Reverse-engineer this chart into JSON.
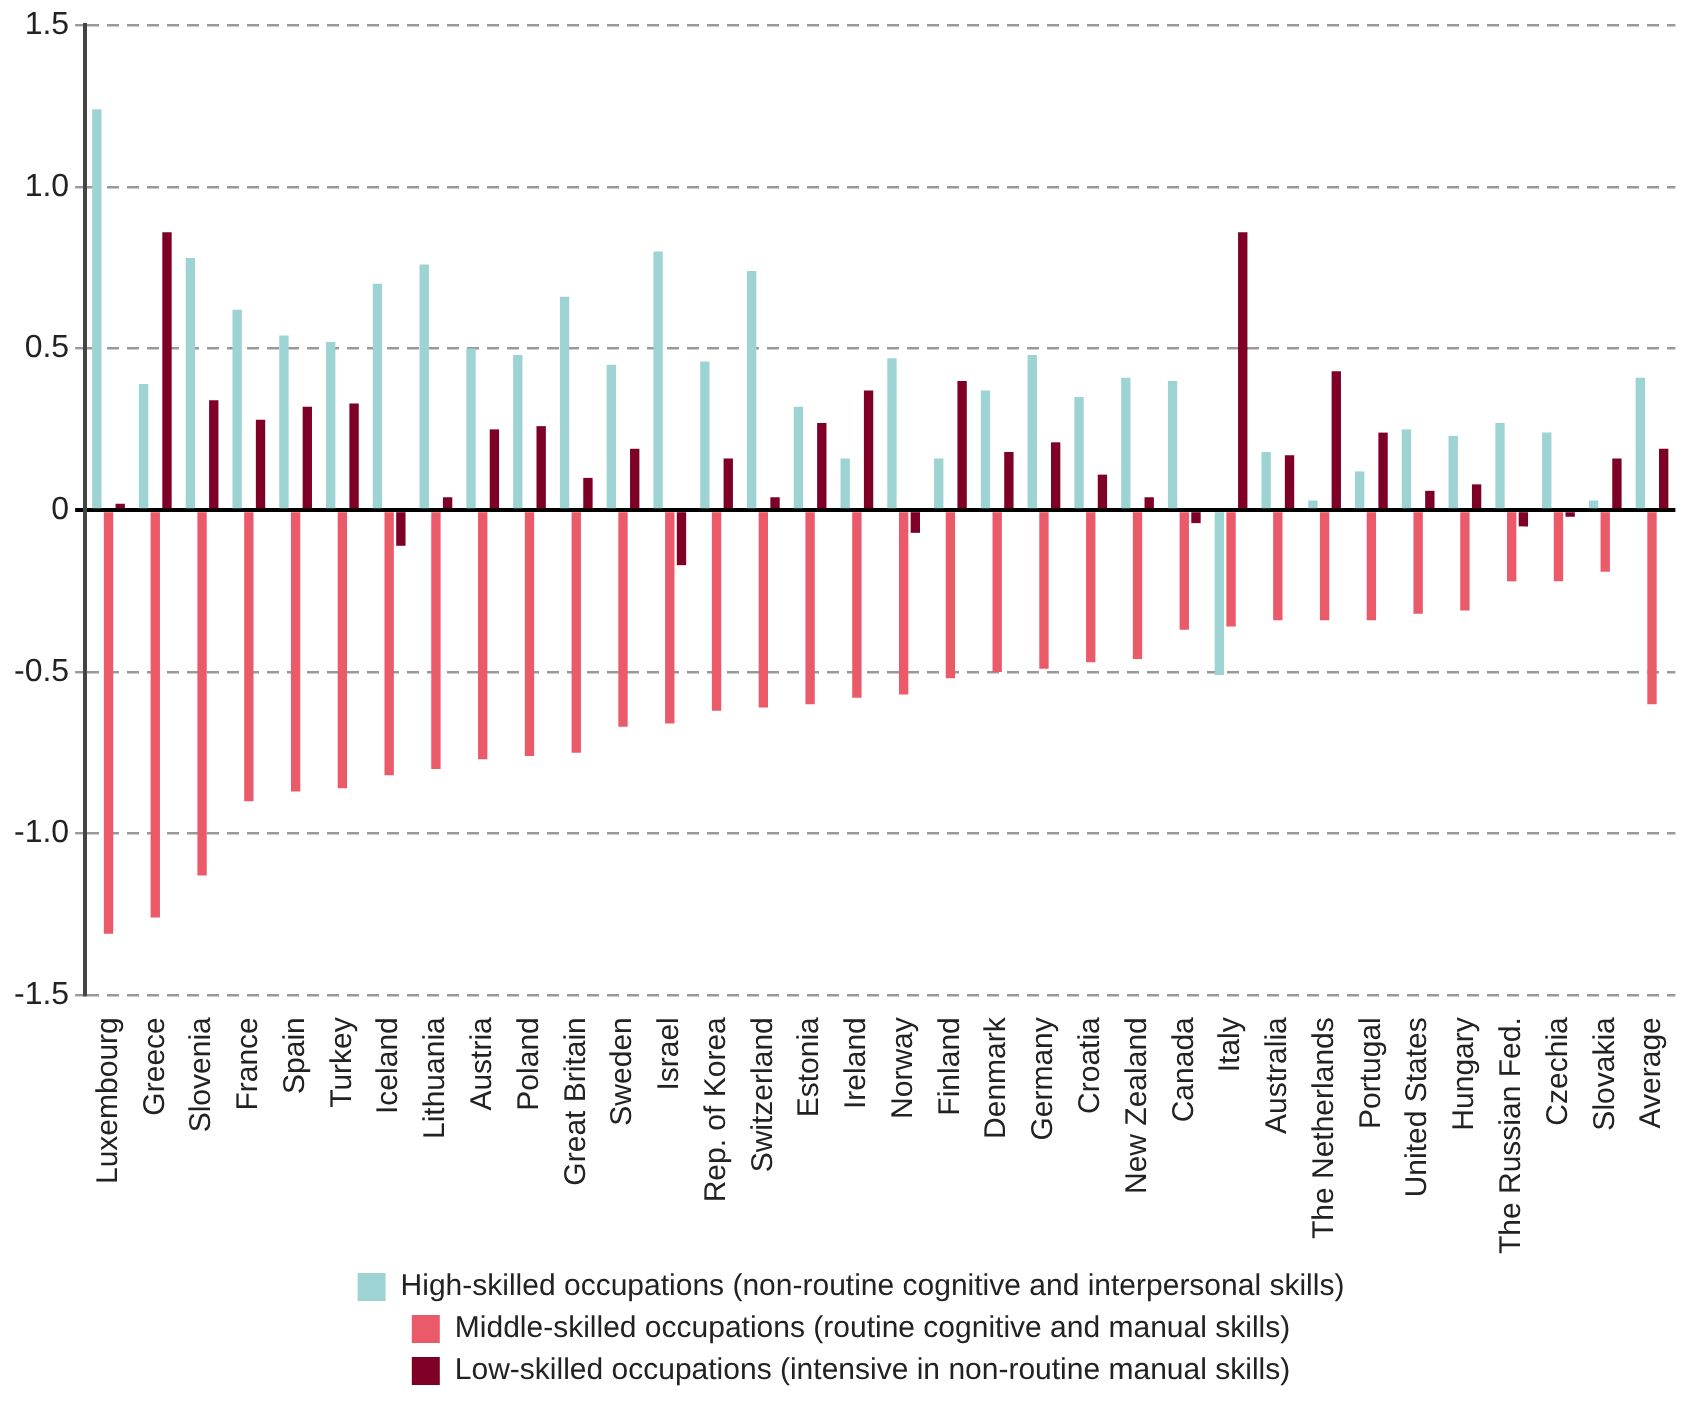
{
  "chart_data": {
    "type": "bar",
    "categories": [
      "Luxembourg",
      "Greece",
      "Slovenia",
      "France",
      "Spain",
      "Turkey",
      "Iceland",
      "Lithuania",
      "Austria",
      "Poland",
      "Great Britain",
      "Sweden",
      "Israel",
      "Rep. of Korea",
      "Switzerland",
      "Estonia",
      "Ireland",
      "Norway",
      "Finland",
      "Denmark",
      "Germany",
      "Croatia",
      "New Zealand",
      "Canada",
      "Italy",
      "Australia",
      "The Netherlands",
      "Portugal",
      "United States",
      "Hungary",
      "The Russian Fed.",
      "Czechia",
      "Slovakia",
      "Average"
    ],
    "series": [
      {
        "name": "High-skilled occupations (non-routine cognitive and interpersonal skills)",
        "color": "#9dd4d3",
        "values": [
          1.24,
          0.39,
          0.78,
          0.62,
          0.54,
          0.52,
          0.7,
          0.76,
          0.5,
          0.48,
          0.66,
          0.45,
          0.8,
          0.46,
          0.74,
          0.32,
          0.16,
          0.47,
          0.16,
          0.37,
          0.48,
          0.35,
          0.41,
          0.4,
          -0.51,
          0.18,
          0.03,
          0.12,
          0.25,
          0.23,
          0.27,
          0.24,
          0.03,
          0.41
        ]
      },
      {
        "name": "Middle-skilled occupations (routine cognitive and manual skills)",
        "color": "#eb5a69",
        "values": [
          -1.31,
          -1.26,
          -1.13,
          -0.9,
          -0.87,
          -0.86,
          -0.82,
          -0.8,
          -0.77,
          -0.76,
          -0.75,
          -0.67,
          -0.66,
          -0.62,
          -0.61,
          -0.6,
          -0.58,
          -0.57,
          -0.52,
          -0.5,
          -0.49,
          -0.47,
          -0.46,
          -0.37,
          -0.36,
          -0.34,
          -0.34,
          -0.34,
          -0.32,
          -0.31,
          -0.22,
          -0.22,
          -0.19,
          -0.6
        ]
      },
      {
        "name": "Low-skilled occupations (intensive in non-routine manual skills)",
        "color": "#7f0027",
        "values": [
          0.02,
          0.86,
          0.34,
          0.28,
          0.32,
          0.33,
          -0.11,
          0.04,
          0.25,
          0.26,
          0.1,
          0.19,
          -0.17,
          0.16,
          0.04,
          0.27,
          0.37,
          -0.07,
          0.4,
          0.18,
          0.21,
          0.11,
          0.04,
          -0.04,
          0.86,
          0.17,
          0.43,
          0.24,
          0.06,
          0.08,
          -0.05,
          -0.02,
          0.16,
          0.19
        ]
      }
    ],
    "ylim": [
      -1.5,
      1.5
    ],
    "yticks": [
      {
        "value": -1.5,
        "label": "-1.5"
      },
      {
        "value": -1,
        "label": "-1.0"
      },
      {
        "value": -0.5,
        "label": "-0.5"
      },
      {
        "value": 0,
        "label": "0"
      },
      {
        "value": 0.5,
        "label": "0.5"
      },
      {
        "value": 1,
        "label": "1.0"
      },
      {
        "value": 1.5,
        "label": "1.5"
      }
    ],
    "grid": "y",
    "legend": "bottom"
  }
}
